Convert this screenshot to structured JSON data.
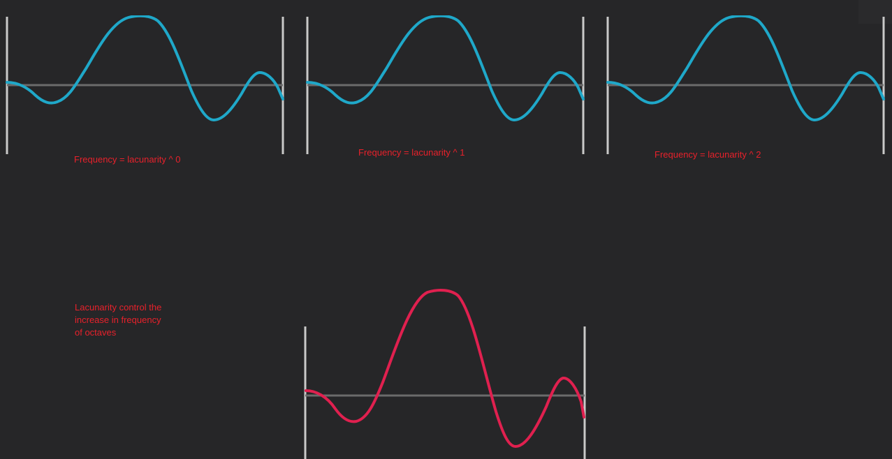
{
  "captions": [
    "Frequency = lacunarity ^ 0",
    "Frequency = lacunarity ^ 1",
    "Frequency = lacunarity ^ 2"
  ],
  "note": {
    "lines": [
      "Lacunarity control the",
      "increase in frequency",
      "of octaves"
    ]
  },
  "colors": {
    "background": "#262628",
    "wave_blue": "#1fa8c9",
    "wave_red": "#e0204f",
    "axis": "#6b6b6b",
    "bars": "#c9c9c9",
    "text": "#e8212b"
  }
}
